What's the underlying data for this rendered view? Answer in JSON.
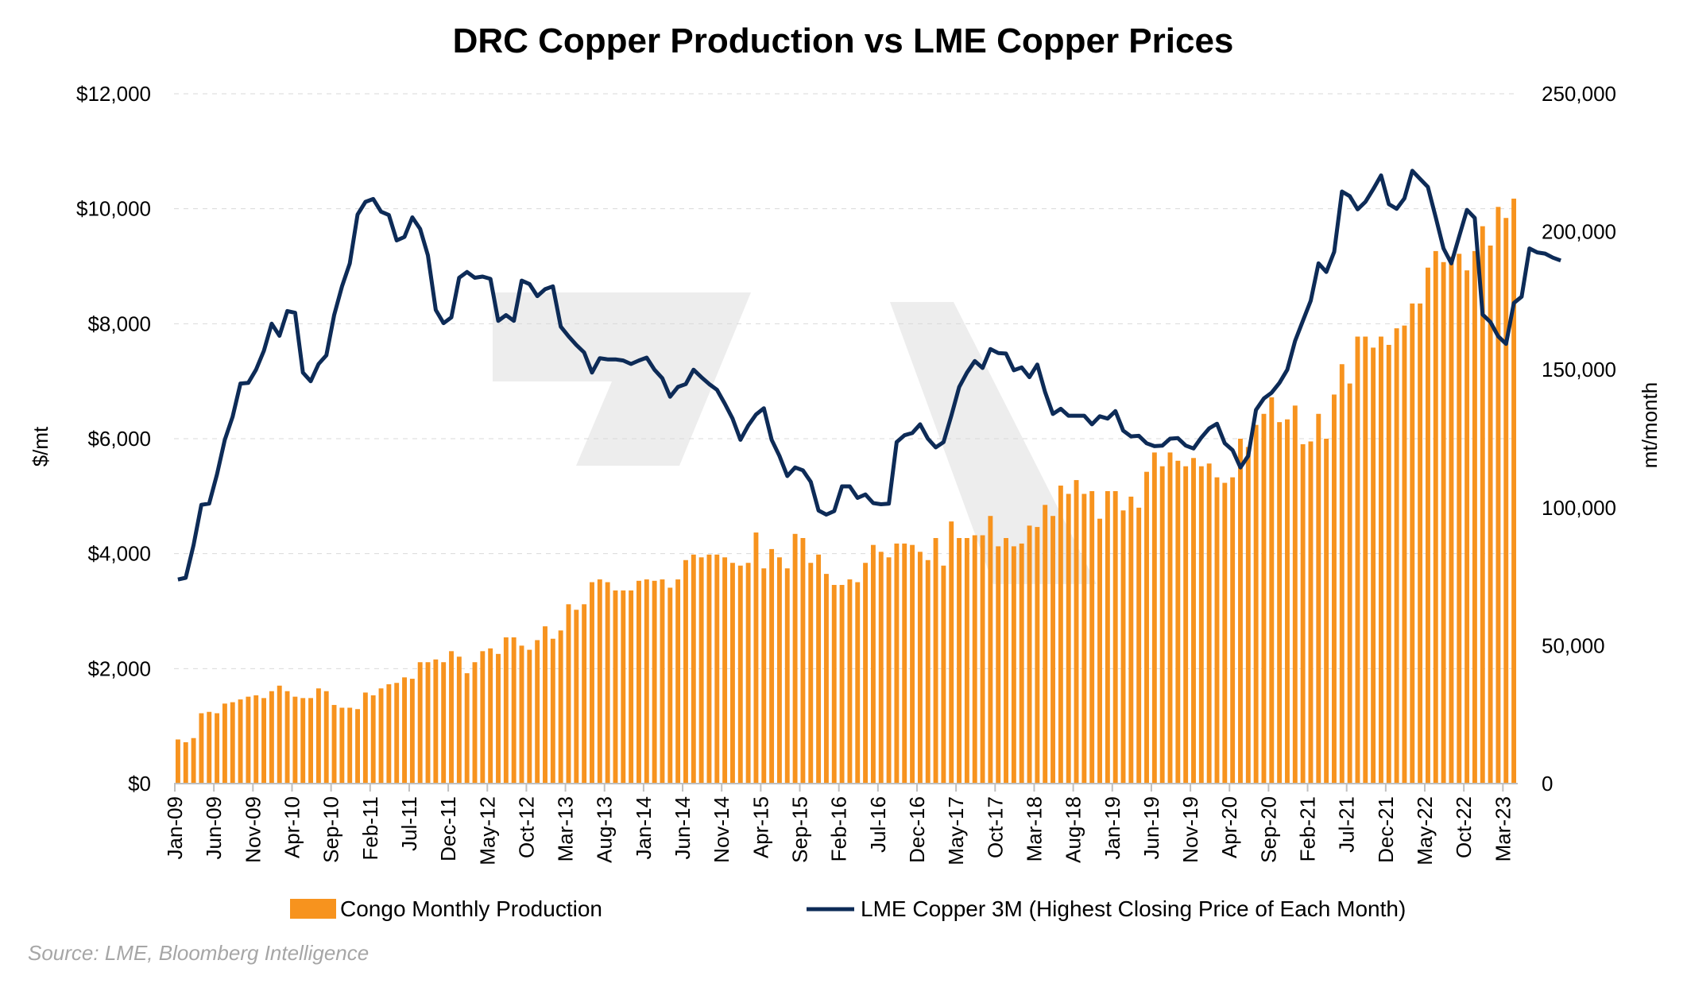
{
  "chart_data": {
    "type": "bar+line",
    "title": "DRC Copper Production vs LME Copper Prices",
    "y_left": {
      "label": "$/mt",
      "range": [
        0,
        12000
      ],
      "ticks": [
        0,
        2000,
        4000,
        6000,
        8000,
        10000,
        12000
      ],
      "tick_labels": [
        "$0",
        "$2,000",
        "$4,000",
        "$6,000",
        "$8,000",
        "$10,000",
        "$12,000"
      ]
    },
    "y_right": {
      "label": "mt/month",
      "range": [
        0,
        250000
      ],
      "ticks": [
        0,
        50000,
        100000,
        150000,
        200000,
        250000
      ],
      "tick_labels": [
        "0",
        "50,000",
        "100,000",
        "150,000",
        "200,000",
        "250,000"
      ]
    },
    "x_start": "Jan-09",
    "x_tick_labels": [
      "Jan-09",
      "Jun-09",
      "Nov-09",
      "Apr-10",
      "Sep-10",
      "Feb-11",
      "Jul-11",
      "Dec-11",
      "May-12",
      "Oct-12",
      "Mar-13",
      "Aug-13",
      "Jan-14",
      "Jun-14",
      "Nov-14",
      "Apr-15",
      "Sep-15",
      "Feb-16",
      "Jul-16",
      "Dec-16",
      "May-17",
      "Oct-17",
      "Mar-18",
      "Aug-18",
      "Jan-19",
      "Jun-19",
      "Nov-19",
      "Apr-20",
      "Sep-20",
      "Feb-21",
      "Jul-21",
      "Dec-21",
      "May-22",
      "Oct-22",
      "Mar-23"
    ],
    "grid": true,
    "legend_position": "bottom",
    "series": [
      {
        "name": "Congo Monthly Production",
        "type": "bar",
        "axis": "right",
        "color": "#f7931e",
        "values": [
          16000,
          15000,
          16500,
          25500,
          26000,
          25500,
          29000,
          29500,
          30500,
          31500,
          32000,
          31000,
          33500,
          35500,
          33500,
          31500,
          31000,
          31000,
          34500,
          33500,
          28500,
          27500,
          27500,
          27000,
          33000,
          32000,
          34500,
          36000,
          36500,
          38500,
          38000,
          44000,
          44000,
          45000,
          44000,
          48000,
          46000,
          40000,
          44000,
          48000,
          49000,
          47000,
          53000,
          53000,
          50000,
          48500,
          52000,
          57000,
          52500,
          55500,
          65000,
          63000,
          65000,
          73000,
          74000,
          73000,
          70000,
          70000,
          70000,
          73500,
          74000,
          73500,
          74000,
          71000,
          74000,
          81000,
          83000,
          82000,
          83000,
          83000,
          82000,
          80000,
          79000,
          80000,
          91000,
          78000,
          85000,
          82000,
          78000,
          90500,
          89000,
          80000,
          83000,
          76000,
          72000,
          72000,
          74000,
          73000,
          80000,
          86500,
          84000,
          82000,
          87000,
          87000,
          86500,
          84000,
          81000,
          89000,
          79000,
          95000,
          89000,
          89000,
          90000,
          90000,
          97000,
          86000,
          89000,
          86000,
          87000,
          93500,
          93000,
          101000,
          97000,
          108000,
          105000,
          110000,
          105000,
          106000,
          96000,
          106000,
          106000,
          99000,
          104000,
          100000,
          113000,
          120000,
          115000,
          120000,
          117000,
          115000,
          118000,
          115000,
          116000,
          111000,
          109000,
          111000,
          125000,
          122000,
          130000,
          134000,
          140000,
          131000,
          132000,
          137000,
          123000,
          124000,
          134000,
          125000,
          141000,
          152000,
          145000,
          162000,
          162000,
          158000,
          162000,
          159000,
          165000,
          166000,
          174000,
          174000,
          187000,
          193000,
          189000,
          191000,
          192000,
          186000,
          193000,
          202000,
          195000,
          209000,
          205000,
          212000
        ],
        "note": "value axis mt/month"
      },
      {
        "name": "LME Copper 3M (Highest Closing Price of Each Month)",
        "type": "line",
        "axis": "left",
        "color": "#0d2b57",
        "values": [
          3550,
          3580,
          4150,
          4850,
          4870,
          5380,
          5980,
          6380,
          6960,
          6970,
          7200,
          7530,
          8000,
          7790,
          8220,
          8190,
          7150,
          7000,
          7300,
          7450,
          8150,
          8650,
          9050,
          9900,
          10120,
          10170,
          9950,
          9890,
          9450,
          9510,
          9850,
          9650,
          9190,
          8240,
          8010,
          8110,
          8800,
          8900,
          8800,
          8820,
          8780,
          8050,
          8150,
          8050,
          8750,
          8690,
          8480,
          8600,
          8650,
          7950,
          7780,
          7630,
          7500,
          7150,
          7400,
          7380,
          7380,
          7360,
          7300,
          7360,
          7410,
          7200,
          7050,
          6730,
          6900,
          6950,
          7200,
          7070,
          6950,
          6850,
          6610,
          6350,
          5980,
          6230,
          6420,
          6530,
          5980,
          5700,
          5350,
          5500,
          5450,
          5250,
          4750,
          4680,
          4740,
          5170,
          5170,
          4970,
          5030,
          4880,
          4860,
          4870,
          5940,
          6060,
          6100,
          6250,
          6000,
          5850,
          5940,
          6400,
          6900,
          7150,
          7350,
          7230,
          7560,
          7490,
          7480,
          7190,
          7240,
          7070,
          7290,
          6810,
          6430,
          6520,
          6400,
          6400,
          6400,
          6250,
          6390,
          6350,
          6480,
          6140,
          6040,
          6050,
          5920,
          5870,
          5880,
          6000,
          6010,
          5880,
          5830,
          6020,
          6180,
          6260,
          5920,
          5800,
          5500,
          5700,
          6500,
          6700,
          6800,
          6970,
          7200,
          7700,
          8050,
          8400,
          9050,
          8900,
          9250,
          10300,
          10220,
          9990,
          10120,
          10340,
          10580,
          10080,
          10000,
          10180,
          10660,
          10520,
          10380,
          9850,
          9310,
          9050,
          9520,
          9980,
          9840,
          8160,
          8030,
          7780,
          7650,
          8360,
          8470,
          9310,
          9240,
          9220,
          9150,
          9100
        ]
      }
    ],
    "legend": [
      "Congo Monthly Production",
      "LME Copper 3M (Highest Closing Price of Each Month)"
    ],
    "source": "Source: LME, Bloomberg Intelligence"
  }
}
